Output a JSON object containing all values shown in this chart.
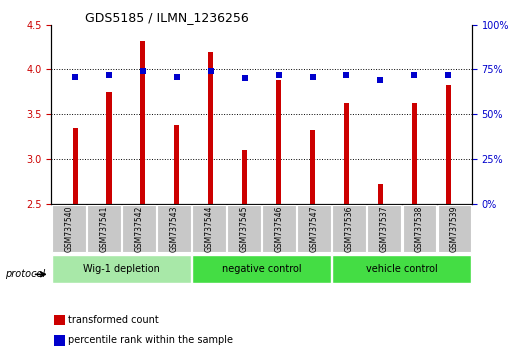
{
  "title": "GDS5185 / ILMN_1236256",
  "samples": [
    "GSM737540",
    "GSM737541",
    "GSM737542",
    "GSM737543",
    "GSM737544",
    "GSM737545",
    "GSM737546",
    "GSM737547",
    "GSM737536",
    "GSM737537",
    "GSM737538",
    "GSM737539"
  ],
  "transformed_counts": [
    3.35,
    3.75,
    4.32,
    3.38,
    4.2,
    3.1,
    3.88,
    3.32,
    3.63,
    2.72,
    3.62,
    3.83
  ],
  "percentile_ranks": [
    71,
    72,
    74,
    71,
    74,
    70,
    72,
    71,
    72,
    69,
    72,
    72
  ],
  "groups": [
    {
      "label": "Wig-1 depletion",
      "start": 0,
      "end": 4
    },
    {
      "label": "negative control",
      "start": 4,
      "end": 8
    },
    {
      "label": "vehicle control",
      "start": 8,
      "end": 12
    }
  ],
  "bar_color": "#CC0000",
  "dot_color": "#0000CC",
  "ylim_left": [
    2.5,
    4.5
  ],
  "ylim_right": [
    0,
    100
  ],
  "yticks_left": [
    2.5,
    3.0,
    3.5,
    4.0,
    4.5
  ],
  "yticks_right": [
    0,
    25,
    50,
    75,
    100
  ],
  "ytick_labels_right": [
    "0%",
    "25%",
    "50%",
    "75%",
    "100%"
  ],
  "sample_bg_color": "#c8c8c8",
  "group_color_light": "#a8e8a8",
  "group_color_dark": "#44dd44",
  "protocol_label": "protocol",
  "bar_width": 0.15,
  "gridline_y": [
    3.0,
    3.5,
    4.0
  ],
  "legend_items": [
    {
      "color": "#CC0000",
      "label": "transformed count"
    },
    {
      "color": "#0000CC",
      "label": "percentile rank within the sample"
    }
  ]
}
